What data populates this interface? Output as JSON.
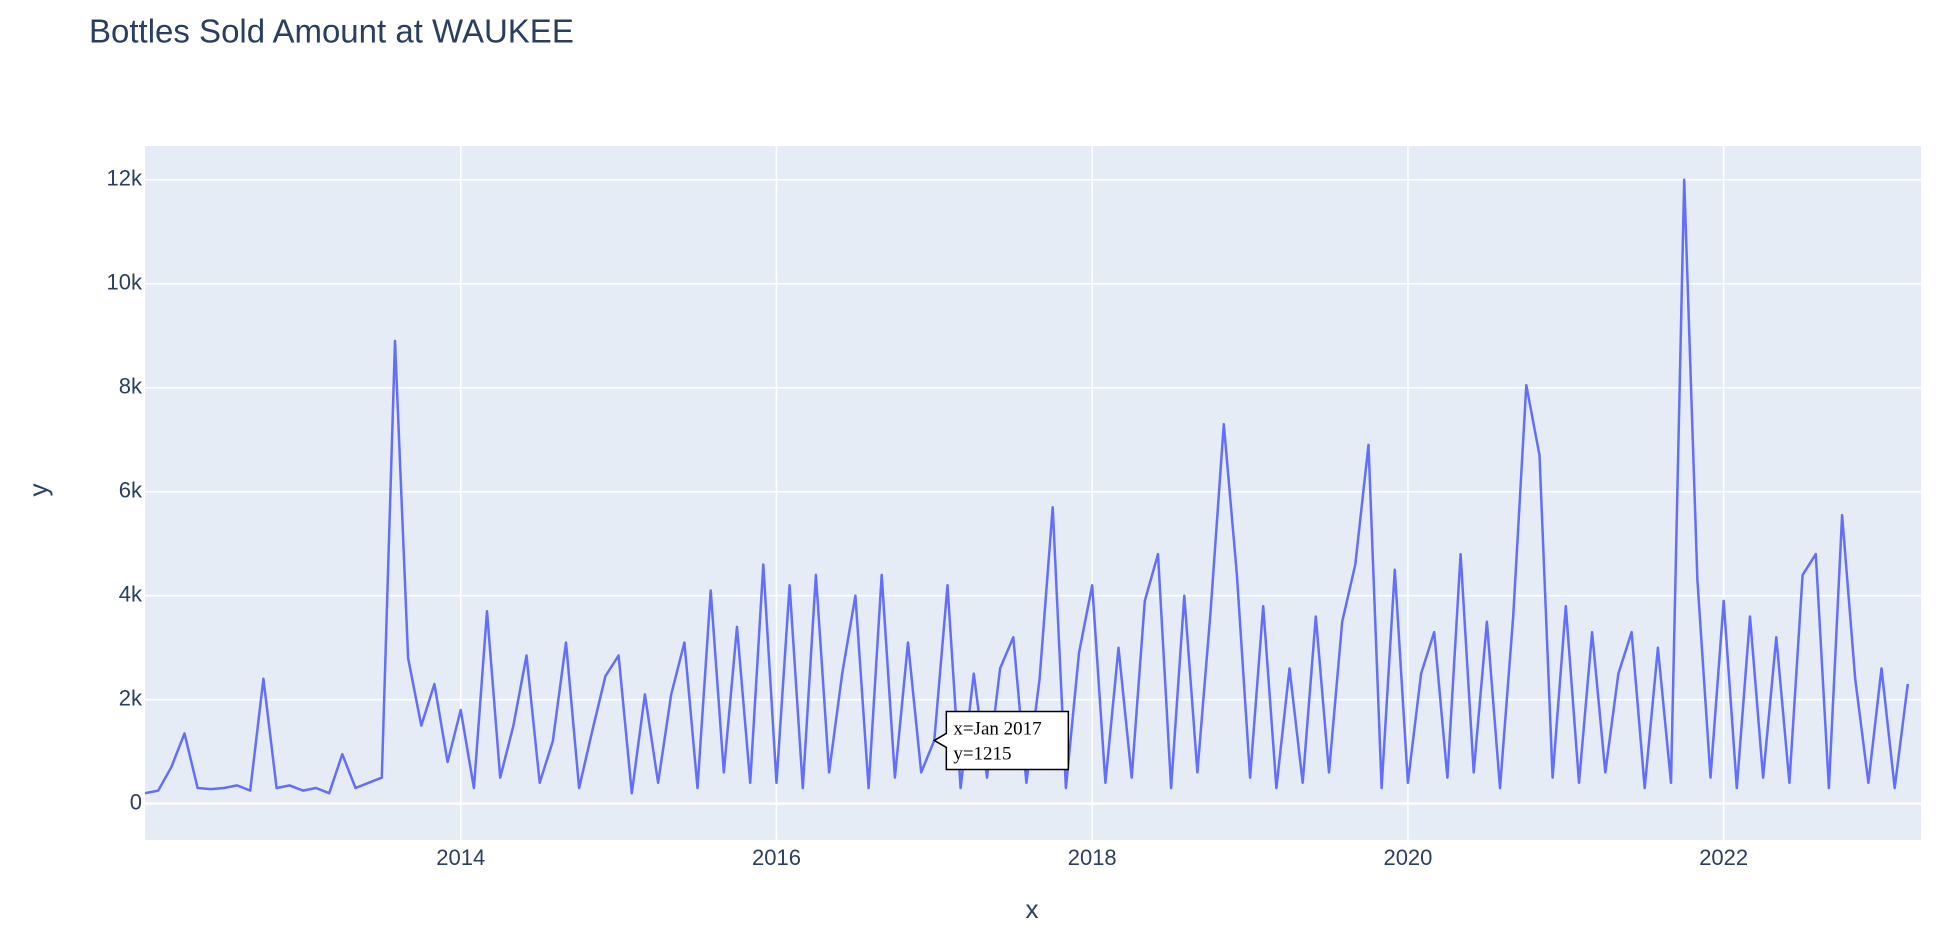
{
  "chart_data": {
    "type": "line",
    "title": "Bottles Sold Amount at WAUKEE",
    "x_label": "x",
    "y_label": "y",
    "x": [
      "2012-01",
      "2012-02",
      "2012-03",
      "2012-04",
      "2012-05",
      "2012-06",
      "2012-07",
      "2012-08",
      "2012-09",
      "2012-10",
      "2012-11",
      "2012-12",
      "2013-01",
      "2013-02",
      "2013-03",
      "2013-04",
      "2013-05",
      "2013-06",
      "2013-07",
      "2013-08",
      "2013-09",
      "2013-10",
      "2013-11",
      "2013-12",
      "2014-01",
      "2014-02",
      "2014-03",
      "2014-04",
      "2014-05",
      "2014-06",
      "2014-07",
      "2014-08",
      "2014-09",
      "2014-10",
      "2014-11",
      "2014-12",
      "2015-01",
      "2015-02",
      "2015-03",
      "2015-04",
      "2015-05",
      "2015-06",
      "2015-07",
      "2015-08",
      "2015-09",
      "2015-10",
      "2015-11",
      "2015-12",
      "2016-01",
      "2016-02",
      "2016-03",
      "2016-04",
      "2016-05",
      "2016-06",
      "2016-07",
      "2016-08",
      "2016-09",
      "2016-10",
      "2016-11",
      "2016-12",
      "2017-01",
      "2017-02",
      "2017-03",
      "2017-04",
      "2017-05",
      "2017-06",
      "2017-07",
      "2017-08",
      "2017-09",
      "2017-10",
      "2017-11",
      "2017-12",
      "2018-01",
      "2018-02",
      "2018-03",
      "2018-04",
      "2018-05",
      "2018-06",
      "2018-07",
      "2018-08",
      "2018-09",
      "2018-10",
      "2018-11",
      "2018-12",
      "2019-01",
      "2019-02",
      "2019-03",
      "2019-04",
      "2019-05",
      "2019-06",
      "2019-07",
      "2019-08",
      "2019-09",
      "2019-10",
      "2019-11",
      "2019-12",
      "2020-01",
      "2020-02",
      "2020-03",
      "2020-04",
      "2020-05",
      "2020-06",
      "2020-07",
      "2020-08",
      "2020-09",
      "2020-10",
      "2020-11",
      "2020-12",
      "2021-01",
      "2021-02",
      "2021-03",
      "2021-04",
      "2021-05",
      "2021-06",
      "2021-07",
      "2021-08",
      "2021-09",
      "2021-10",
      "2021-11",
      "2021-12",
      "2022-01",
      "2022-02",
      "2022-03",
      "2022-04",
      "2022-05",
      "2022-06",
      "2022-07",
      "2022-08",
      "2022-09",
      "2022-10",
      "2022-11",
      "2022-12",
      "2023-01",
      "2023-02",
      "2023-03"
    ],
    "series": [
      {
        "name": "y",
        "color": "#636efa",
        "values": [
          200,
          250,
          700,
          1350,
          300,
          280,
          300,
          350,
          250,
          2400,
          300,
          350,
          250,
          300,
          200,
          950,
          300,
          400,
          500,
          8900,
          2800,
          1500,
          2300,
          800,
          1800,
          300,
          3700,
          500,
          1500,
          2850,
          400,
          1200,
          3100,
          300,
          1400,
          2450,
          2850,
          200,
          2100,
          400,
          2100,
          3100,
          300,
          4100,
          600,
          3400,
          400,
          4600,
          400,
          4200,
          300,
          4400,
          600,
          2500,
          4000,
          300,
          4400,
          500,
          3100,
          600,
          1215,
          4200,
          300,
          2500,
          500,
          2600,
          3200,
          400,
          2400,
          5700,
          300,
          2900,
          4200,
          400,
          3000,
          500,
          3900,
          4800,
          300,
          4000,
          600,
          3700,
          7300,
          4400,
          500,
          3800,
          300,
          2600,
          400,
          3600,
          600,
          3500,
          4600,
          6900,
          300,
          4500,
          400,
          2500,
          3300,
          500,
          4800,
          600,
          3500,
          300,
          3600,
          8050,
          6700,
          500,
          3800,
          400,
          3300,
          600,
          2500,
          3300,
          300,
          3000,
          400,
          12000,
          4300,
          500,
          3900,
          300,
          3600,
          500,
          3200,
          400,
          4400,
          4800,
          300,
          5550,
          2400,
          400,
          2600,
          300,
          2300
        ]
      }
    ],
    "xlim": [
      "2012-01",
      "2023-04"
    ],
    "xticks": [
      "2014",
      "2016",
      "2018",
      "2020",
      "2022"
    ],
    "ylim": [
      -700,
      12650
    ],
    "yticks": [
      0,
      {
        "value": 2000,
        "label": "2k"
      },
      {
        "value": 4000,
        "label": "4k"
      },
      {
        "value": 6000,
        "label": "6k"
      },
      {
        "value": 8000,
        "label": "8k"
      },
      {
        "value": 10000,
        "label": "10k"
      },
      {
        "value": 12000,
        "label": "12k"
      }
    ],
    "grid": true,
    "tooltip": {
      "index": 60,
      "lines": [
        "x=Jan 2017",
        "y=1215"
      ]
    }
  }
}
